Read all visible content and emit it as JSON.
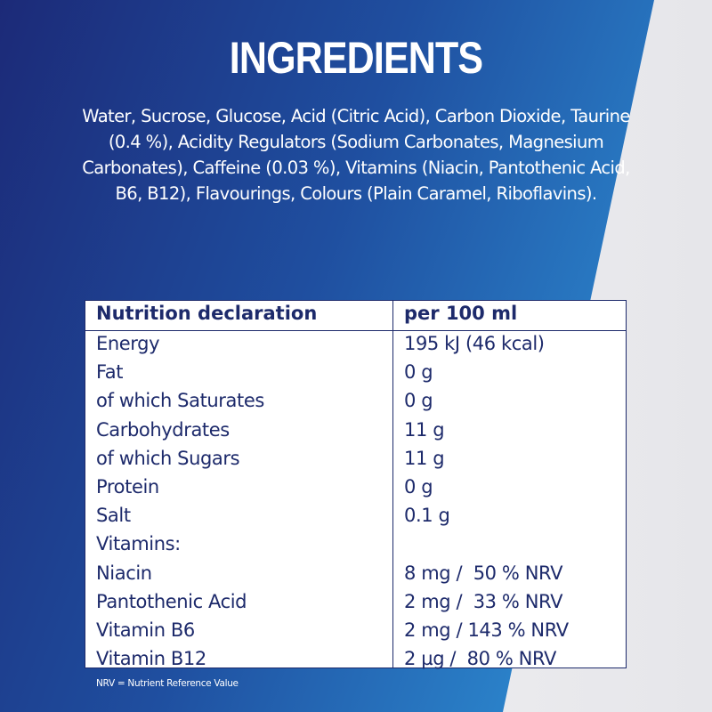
{
  "colors": {
    "blue_dark": "#1c2a78",
    "blue_light": "#2a7cc4",
    "text_navy": "#1d2a6b",
    "white": "#ffffff"
  },
  "title": "INGREDIENTS",
  "ingredients": "Water, Sucrose, Glucose, Acid (Citric Acid), Carbon Dioxide, Taurine (0.4 %), Acidity Regulators (Sodium Carbonates, Magnesium Carbonates), Caffeine (0.03 %), Vitamins (Niacin, Pantothenic Acid, B6, B12), Flavourings, Colours (Plain Caramel, Riboflavins).",
  "table": {
    "header": [
      "Nutrition declaration",
      "per 100 ml"
    ],
    "rows": [
      [
        "Energy",
        "195 kJ (46 kcal)"
      ],
      [
        "Fat",
        "0 g"
      ],
      [
        "of which Saturates",
        "0 g"
      ],
      [
        "Carbohydrates",
        "11 g"
      ],
      [
        "of which Sugars",
        "11 g"
      ],
      [
        "Protein",
        "0 g"
      ],
      [
        "Salt",
        "0.1 g"
      ],
      [
        "Vitamins:",
        ""
      ],
      [
        "Niacin",
        "8 mg /  50 % NRV"
      ],
      [
        "Pantothenic Acid",
        "2 mg /  33 % NRV"
      ],
      [
        "Vitamin B6",
        "2 mg / 143 % NRV"
      ],
      [
        "Vitamin B12",
        "2 µg /  80 % NRV"
      ]
    ]
  },
  "footnote": "NRV = Nutrient Reference Value"
}
